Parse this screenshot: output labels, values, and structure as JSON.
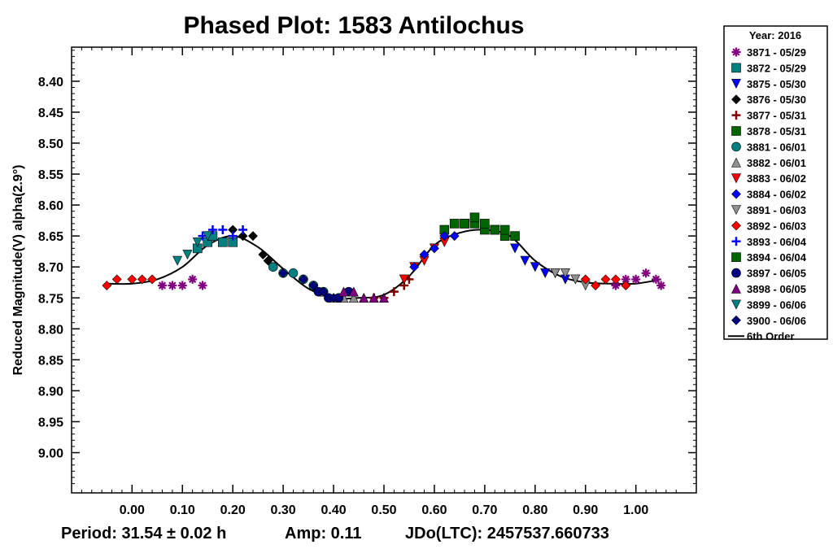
{
  "chart_data": {
    "type": "scatter",
    "title": "Phased Plot: 1583 Antilochus",
    "xlabel": "",
    "ylabel": "Reduced Magnitude(V) alpha(2.9°)",
    "xlim": [
      -0.12,
      1.12
    ],
    "ylim": [
      9.065,
      8.345
    ],
    "y_inverted": true,
    "x_ticks": [
      "0.00",
      "0.10",
      "0.20",
      "0.30",
      "0.40",
      "0.50",
      "0.60",
      "0.70",
      "0.80",
      "0.90",
      "1.00"
    ],
    "y_ticks": [
      "8.40",
      "8.45",
      "8.50",
      "8.55",
      "8.60",
      "8.65",
      "8.70",
      "8.75",
      "8.80",
      "8.85",
      "8.90",
      "8.95",
      "9.00"
    ],
    "grid": false,
    "legend_position": "right",
    "legend_title": "Year: 2016",
    "footer": {
      "period": "Period: 31.54 ± 0.02 h",
      "amp": "Amp: 0.11",
      "jdo": "JDo(LTC): 2457537.660733"
    },
    "series": [
      {
        "name": "3871 - 05/29",
        "color": "#800080",
        "marker": "star",
        "x": [
          0.06,
          0.08,
          0.1,
          0.12,
          0.14,
          0.96,
          0.98,
          1.0,
          1.02,
          1.04,
          1.05
        ],
        "y": [
          8.73,
          8.73,
          8.73,
          8.72,
          8.73,
          8.73,
          8.72,
          8.72,
          8.71,
          8.72,
          8.73
        ]
      },
      {
        "name": "3872 - 05/29",
        "color": "#008080",
        "marker": "square",
        "x": [
          0.13,
          0.15,
          0.16,
          0.18,
          0.2
        ],
        "y": [
          8.67,
          8.66,
          8.65,
          8.66,
          8.66
        ]
      },
      {
        "name": "3875 - 05/30",
        "color": "#0000ff",
        "marker": "triangle-down",
        "x": [
          0.76,
          0.78,
          0.8,
          0.82,
          0.84,
          0.86
        ],
        "y": [
          8.67,
          8.69,
          8.7,
          8.71,
          8.71,
          8.72
        ]
      },
      {
        "name": "3876 - 05/30",
        "color": "#000000",
        "marker": "diamond",
        "x": [
          0.2,
          0.22,
          0.24,
          0.26,
          0.27,
          0.28
        ],
        "y": [
          8.64,
          8.65,
          8.65,
          8.68,
          8.69,
          8.7
        ]
      },
      {
        "name": "3877 - 05/31",
        "color": "#800000",
        "marker": "plus",
        "x": [
          0.48,
          0.5,
          0.52,
          0.54,
          0.55
        ],
        "y": [
          8.75,
          8.75,
          8.74,
          8.73,
          8.72
        ]
      },
      {
        "name": "3878 - 05/31",
        "color": "#006400",
        "marker": "square",
        "x": [
          0.62,
          0.64,
          0.66,
          0.68,
          0.7,
          0.72,
          0.74,
          0.76
        ],
        "y": [
          8.64,
          8.63,
          8.63,
          8.63,
          8.64,
          8.64,
          8.65,
          8.65
        ]
      },
      {
        "name": "3881 - 06/01",
        "color": "#008080",
        "marker": "circle",
        "x": [
          0.28,
          0.3,
          0.32,
          0.34,
          0.36,
          0.38
        ],
        "y": [
          8.7,
          8.71,
          8.71,
          8.72,
          8.73,
          8.74
        ]
      },
      {
        "name": "3882 - 06/01",
        "color": "#909090",
        "marker": "triangle",
        "x": [
          0.38,
          0.4,
          0.42,
          0.44,
          0.46,
          0.48
        ],
        "y": [
          8.74,
          8.75,
          8.75,
          8.75,
          8.75,
          8.75
        ]
      },
      {
        "name": "3883 - 06/02",
        "color": "#ff0000",
        "marker": "triangle-down",
        "x": [
          0.54,
          0.56,
          0.58,
          0.6,
          0.62
        ],
        "y": [
          8.72,
          8.7,
          8.69,
          8.67,
          8.66
        ]
      },
      {
        "name": "3884 - 06/02",
        "color": "#0000ff",
        "marker": "diamond",
        "x": [
          0.56,
          0.58,
          0.6,
          0.62,
          0.64
        ],
        "y": [
          8.7,
          8.68,
          8.67,
          8.65,
          8.65
        ]
      },
      {
        "name": "3891 - 06/03",
        "color": "#909090",
        "marker": "triangle-down",
        "x": [
          0.84,
          0.86,
          0.88,
          0.9
        ],
        "y": [
          8.71,
          8.71,
          8.72,
          8.73
        ]
      },
      {
        "name": "3892 - 06/03",
        "color": "#ff0000",
        "marker": "diamond",
        "x": [
          -0.05,
          -0.03,
          0.0,
          0.02,
          0.04,
          0.9,
          0.92,
          0.94,
          0.96,
          0.98
        ],
        "y": [
          8.73,
          8.72,
          8.72,
          8.72,
          8.72,
          8.72,
          8.73,
          8.72,
          8.72,
          8.73
        ]
      },
      {
        "name": "3893 - 06/04",
        "color": "#0000ff",
        "marker": "plus",
        "x": [
          0.14,
          0.16,
          0.18,
          0.2,
          0.22
        ],
        "y": [
          8.65,
          8.64,
          8.64,
          8.65,
          8.64
        ]
      },
      {
        "name": "3894 - 06/04",
        "color": "#006400",
        "marker": "square",
        "x": [
          0.66,
          0.68,
          0.7,
          0.72,
          0.74
        ],
        "y": [
          8.63,
          8.62,
          8.63,
          8.64,
          8.64
        ]
      },
      {
        "name": "3897 - 06/05",
        "color": "#000080",
        "marker": "circle",
        "x": [
          0.37,
          0.39,
          0.41,
          0.43
        ],
        "y": [
          8.74,
          8.75,
          8.75,
          8.74
        ]
      },
      {
        "name": "3898 - 06/05",
        "color": "#800080",
        "marker": "triangle",
        "x": [
          0.42,
          0.44,
          0.46,
          0.48,
          0.5
        ],
        "y": [
          8.74,
          8.74,
          8.75,
          8.75,
          8.75
        ]
      },
      {
        "name": "3899 - 06/06",
        "color": "#008080",
        "marker": "triangle-down",
        "x": [
          0.09,
          0.11,
          0.13,
          0.15
        ],
        "y": [
          8.69,
          8.68,
          8.66,
          8.65
        ]
      },
      {
        "name": "3900 - 06/06",
        "color": "#000080",
        "marker": "diamond",
        "x": [
          0.3,
          0.34,
          0.36,
          0.38,
          0.4
        ],
        "y": [
          8.71,
          8.72,
          8.73,
          8.74,
          8.75
        ]
      }
    ],
    "fit": {
      "name": "6th Order",
      "color": "#000000",
      "x": [
        -0.05,
        0.0,
        0.05,
        0.1,
        0.15,
        0.2,
        0.25,
        0.3,
        0.35,
        0.4,
        0.45,
        0.5,
        0.55,
        0.6,
        0.65,
        0.7,
        0.75,
        0.8,
        0.85,
        0.9,
        0.95,
        1.0,
        1.05
      ],
      "y": [
        8.727,
        8.727,
        8.72,
        8.7,
        8.665,
        8.65,
        8.668,
        8.703,
        8.735,
        8.75,
        8.75,
        8.745,
        8.715,
        8.665,
        8.645,
        8.64,
        8.65,
        8.69,
        8.715,
        8.725,
        8.727,
        8.727,
        8.72
      ]
    }
  }
}
